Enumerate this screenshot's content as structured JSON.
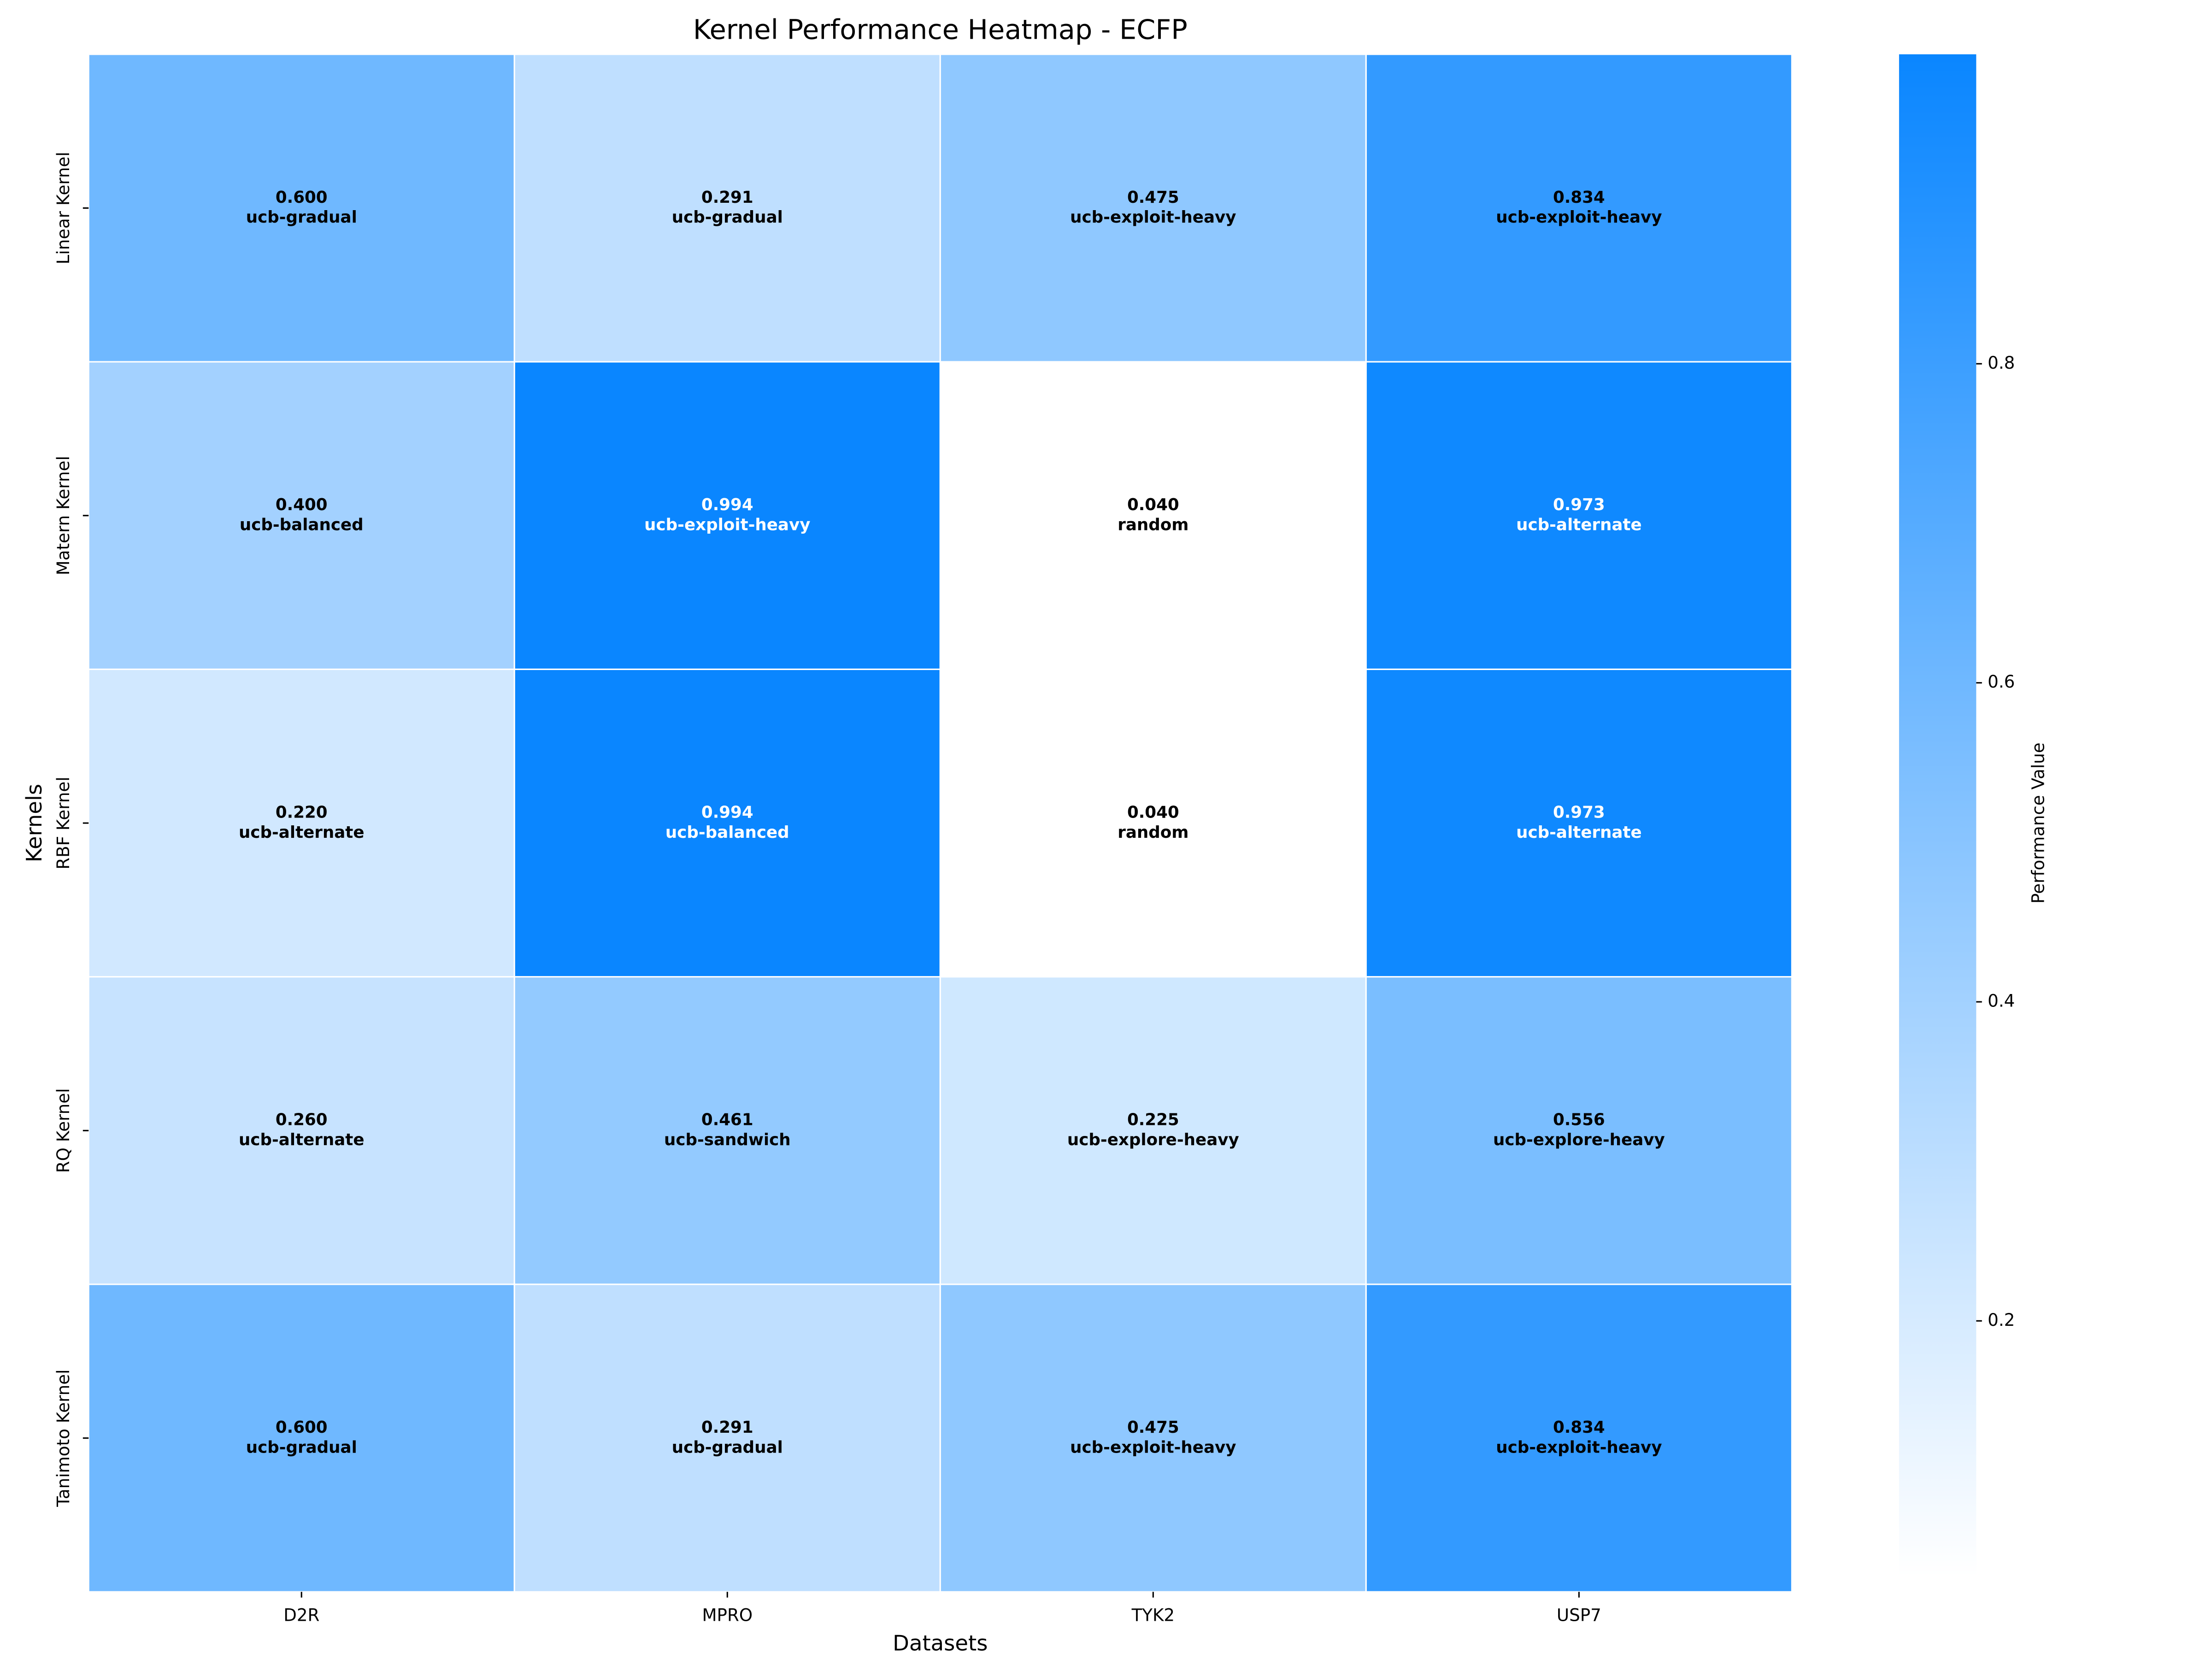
{
  "chart_data": {
    "type": "heatmap",
    "title": "Kernel Performance Heatmap - ECFP",
    "x_label": "Datasets",
    "y_label": "Kernels",
    "categories": [
      "D2R",
      "MPRO",
      "TYK2",
      "USP7"
    ],
    "y_categories": [
      "Linear Kernel",
      "Matern Kernel",
      "RBF Kernel",
      "RQ Kernel",
      "Tanimoto Kernel"
    ],
    "values": [
      [
        0.6,
        0.291,
        0.475,
        0.834
      ],
      [
        0.4,
        0.994,
        0.04,
        0.973
      ],
      [
        0.22,
        0.994,
        0.04,
        0.973
      ],
      [
        0.26,
        0.461,
        0.225,
        0.556
      ],
      [
        0.6,
        0.291,
        0.475,
        0.834
      ]
    ],
    "value_labels": [
      [
        "0.600",
        "0.291",
        "0.475",
        "0.834"
      ],
      [
        "0.400",
        "0.994",
        "0.040",
        "0.973"
      ],
      [
        "0.220",
        "0.994",
        "0.040",
        "0.973"
      ],
      [
        "0.260",
        "0.461",
        "0.225",
        "0.556"
      ],
      [
        "0.600",
        "0.291",
        "0.475",
        "0.834"
      ]
    ],
    "annotations": [
      [
        "ucb-gradual",
        "ucb-gradual",
        "ucb-exploit-heavy",
        "ucb-exploit-heavy"
      ],
      [
        "ucb-balanced",
        "ucb-exploit-heavy",
        "random",
        "ucb-alternate"
      ],
      [
        "ucb-alternate",
        "ucb-balanced",
        "random",
        "ucb-alternate"
      ],
      [
        "ucb-alternate",
        "ucb-sandwich",
        "ucb-explore-heavy",
        "ucb-explore-heavy"
      ],
      [
        "ucb-gradual",
        "ucb-gradual",
        "ucb-exploit-heavy",
        "ucb-exploit-heavy"
      ]
    ],
    "colorbar_label": "Performance Value",
    "clim": [
      0.04,
      0.994
    ],
    "cticks": [
      0.2,
      0.4,
      0.6,
      0.8
    ],
    "cmap": [
      "#ffffff",
      "#0a86ff"
    ]
  }
}
